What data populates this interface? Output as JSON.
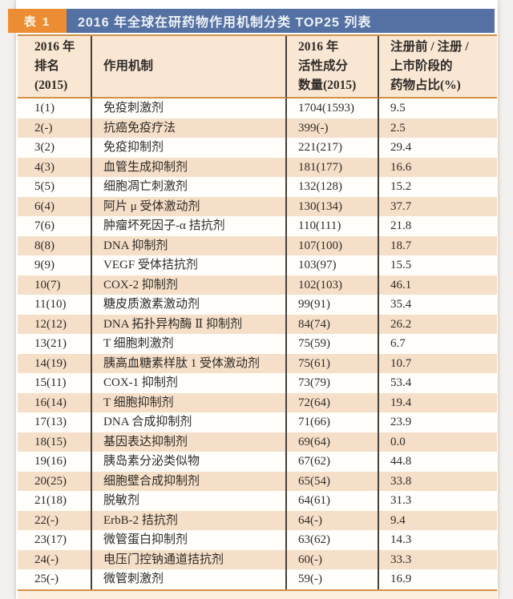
{
  "title_bar": {
    "badge": "表 1",
    "title": "2016 年全球在研药物作用机制分类 TOP25 列表"
  },
  "colors": {
    "badge_orange": "#ec8d34",
    "bar_blue": "#5571a3",
    "header_peach": "#fae7d3",
    "row_alt_peach": "#f6dfc8",
    "rule_orange": "#d0914a",
    "divider_dark": "#43403b"
  },
  "table": {
    "columns": [
      {
        "key": "rank",
        "label": "2016 年\n排名\n(2015)"
      },
      {
        "key": "mechanism",
        "label": "作用机制"
      },
      {
        "key": "count",
        "label": "2016 年\n活性成分\n数量(2015)"
      },
      {
        "key": "pct",
        "label": "注册前 / 注册 /\n上市阶段的\n药物占比(%)"
      }
    ],
    "rows": [
      {
        "rank": "1(1)",
        "mechanism": "免疫刺激剂",
        "count": "1704(1593)",
        "pct": "9.5"
      },
      {
        "rank": "2(-)",
        "mechanism": "抗癌免疫疗法",
        "count": "399(-)",
        "pct": "2.5"
      },
      {
        "rank": "3(2)",
        "mechanism": "免疫抑制剂",
        "count": "221(217)",
        "pct": "29.4"
      },
      {
        "rank": "4(3)",
        "mechanism": "血管生成抑制剂",
        "count": "181(177)",
        "pct": "16.6"
      },
      {
        "rank": "5(5)",
        "mechanism": "细胞凋亡刺激剂",
        "count": "132(128)",
        "pct": "15.2"
      },
      {
        "rank": "6(4)",
        "mechanism": "阿片 μ 受体激动剂",
        "count": "130(134)",
        "pct": "37.7"
      },
      {
        "rank": "7(6)",
        "mechanism": "肿瘤坏死因子-α 拮抗剂",
        "count": "110(111)",
        "pct": "21.8"
      },
      {
        "rank": "8(8)",
        "mechanism": "DNA 抑制剂",
        "count": "107(100)",
        "pct": "18.7"
      },
      {
        "rank": "9(9)",
        "mechanism": "VEGF 受体拮抗剂",
        "count": "103(97)",
        "pct": "15.5"
      },
      {
        "rank": "10(7)",
        "mechanism": "COX-2 抑制剂",
        "count": "102(103)",
        "pct": "46.1"
      },
      {
        "rank": "11(10)",
        "mechanism": "糖皮质激素激动剂",
        "count": "99(91)",
        "pct": "35.4"
      },
      {
        "rank": "12(12)",
        "mechanism": "DNA 拓扑异构酶 Ⅱ 抑制剂",
        "count": "84(74)",
        "pct": "26.2"
      },
      {
        "rank": "13(21)",
        "mechanism": "T 细胞刺激剂",
        "count": "75(59)",
        "pct": "6.7"
      },
      {
        "rank": "14(19)",
        "mechanism": "胰高血糖素样肽 1 受体激动剂",
        "count": "75(61)",
        "pct": "10.7"
      },
      {
        "rank": "15(11)",
        "mechanism": "COX-1 抑制剂",
        "count": "73(79)",
        "pct": "53.4"
      },
      {
        "rank": "16(14)",
        "mechanism": "T 细胞抑制剂",
        "count": "72(64)",
        "pct": "19.4"
      },
      {
        "rank": "17(13)",
        "mechanism": "DNA 合成抑制剂",
        "count": "71(66)",
        "pct": "23.9"
      },
      {
        "rank": "18(15)",
        "mechanism": "基因表达抑制剂",
        "count": "69(64)",
        "pct": "0.0"
      },
      {
        "rank": "19(16)",
        "mechanism": "胰岛素分泌类似物",
        "count": "67(62)",
        "pct": "44.8"
      },
      {
        "rank": "20(25)",
        "mechanism": "细胞壁合成抑制剂",
        "count": "65(54)",
        "pct": "33.8"
      },
      {
        "rank": "21(18)",
        "mechanism": "脱敏剂",
        "count": "64(61)",
        "pct": "31.3"
      },
      {
        "rank": "22(-)",
        "mechanism": "ErbB-2 拮抗剂",
        "count": "64(-)",
        "pct": "9.4"
      },
      {
        "rank": "23(17)",
        "mechanism": "微管蛋白抑制剂",
        "count": "63(62)",
        "pct": "14.3"
      },
      {
        "rank": "24(-)",
        "mechanism": "电压门控钠通道拮抗剂",
        "count": "60(-)",
        "pct": "33.3"
      },
      {
        "rank": "25(-)",
        "mechanism": "微管刺激剂",
        "count": "59(-)",
        "pct": "16.9"
      }
    ]
  }
}
